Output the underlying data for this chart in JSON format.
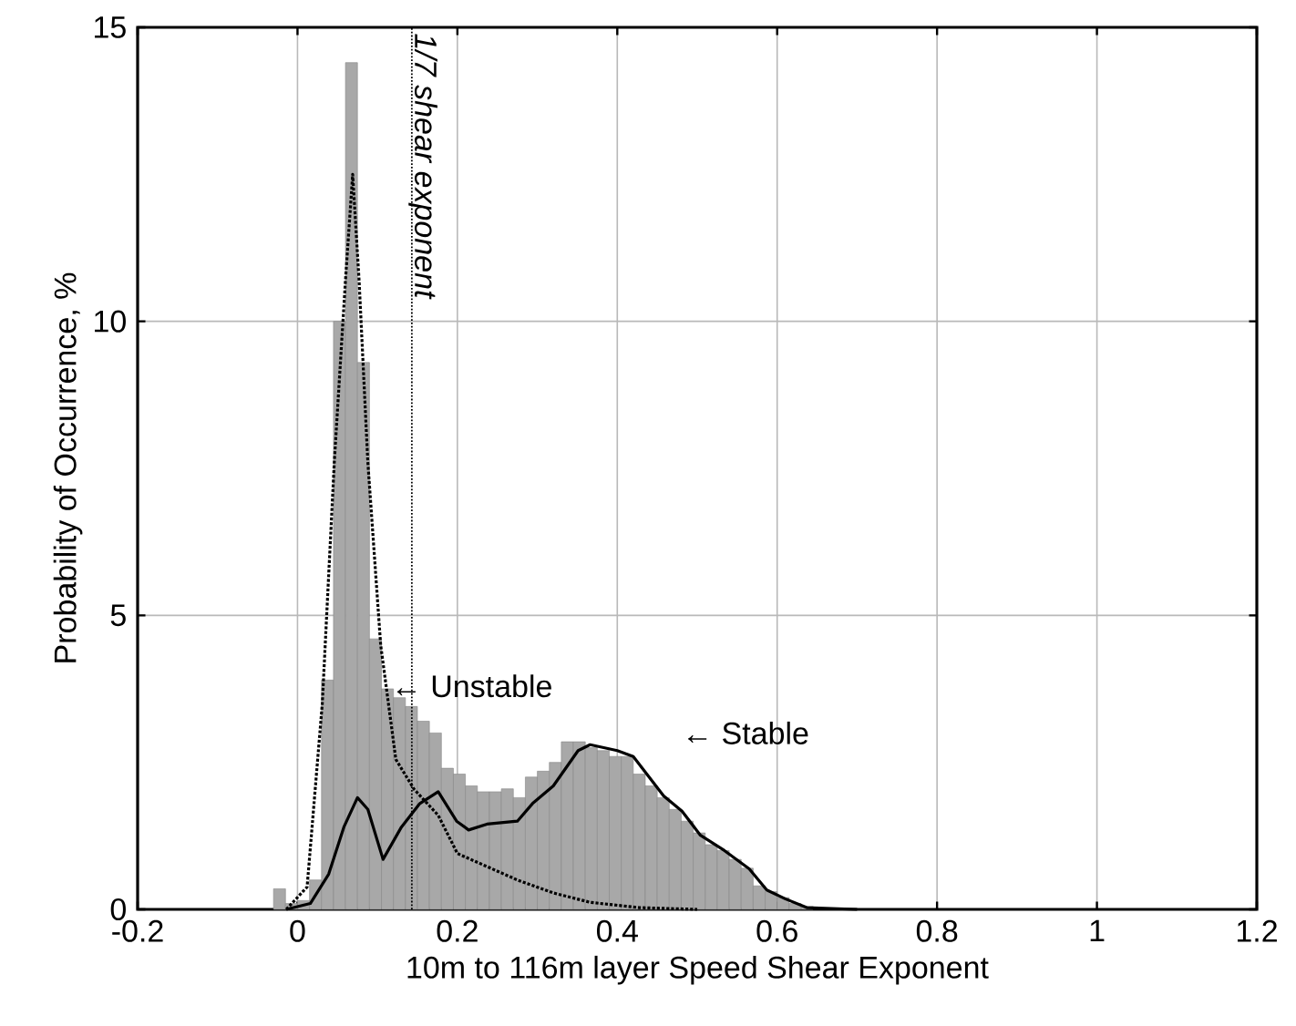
{
  "chart_data": {
    "type": "histogram",
    "xlabel": "10m to 116m layer Speed Shear Exponent",
    "ylabel": "Probability of Occurrence, %",
    "bins": [
      -0.03,
      -0.015,
      0,
      0.015,
      0.03,
      0.045,
      0.06,
      0.075,
      0.09,
      0.105,
      0.12,
      0.135,
      0.15,
      0.165,
      0.18,
      0.195,
      0.21,
      0.225,
      0.24,
      0.255,
      0.27,
      0.285,
      0.3,
      0.315,
      0.33,
      0.345,
      0.36,
      0.375,
      0.39,
      0.405,
      0.42,
      0.435,
      0.45,
      0.465,
      0.48,
      0.495,
      0.51,
      0.525,
      0.54,
      0.555,
      0.57,
      0.585,
      0.6,
      0.615,
      0.63,
      0.645
    ],
    "values": [
      0.35,
      0.1,
      0.15,
      0.5,
      3.9,
      10.0,
      14.4,
      9.3,
      4.6,
      3.75,
      3.6,
      3.45,
      3.2,
      3.0,
      2.4,
      2.3,
      2.1,
      2.0,
      2.0,
      2.05,
      1.9,
      2.25,
      2.35,
      2.5,
      2.85,
      2.85,
      2.75,
      2.7,
      2.6,
      2.6,
      2.3,
      2.1,
      1.9,
      1.7,
      1.5,
      1.3,
      1.1,
      1.0,
      0.85,
      0.7,
      0.4,
      0.3,
      0.2,
      0.1,
      0.05
    ],
    "color": "#a8a8a8",
    "series": [
      {
        "type": "line",
        "color": "#000000",
        "line_style": "dotted",
        "x": [
          -0.014,
          0.012,
          0.031,
          0.046,
          0.06,
          0.069,
          0.077,
          0.088,
          0.104,
          0.123,
          0.146,
          0.176,
          0.2,
          0.245,
          0.275,
          0.32,
          0.366,
          0.427,
          0.5
        ],
        "values": [
          0,
          0.38,
          3.5,
          7.6,
          10.7,
          12.5,
          10.7,
          7.6,
          4.5,
          2.55,
          2.04,
          1.6,
          0.95,
          0.68,
          0.5,
          0.28,
          0.12,
          0.03,
          0
        ]
      },
      {
        "type": "line",
        "color": "#000000",
        "line_style": "solid",
        "x": [
          -0.014,
          0.016,
          0.039,
          0.058,
          0.075,
          0.088,
          0.107,
          0.13,
          0.153,
          0.176,
          0.199,
          0.214,
          0.237,
          0.275,
          0.294,
          0.32,
          0.351,
          0.366,
          0.4,
          0.42,
          0.458,
          0.481,
          0.504,
          0.534,
          0.565,
          0.587,
          0.61,
          0.637,
          0.7
        ],
        "values": [
          0,
          0.1,
          0.6,
          1.4,
          1.9,
          1.7,
          0.85,
          1.4,
          1.8,
          2.0,
          1.5,
          1.35,
          1.45,
          1.5,
          1.8,
          2.1,
          2.7,
          2.8,
          2.7,
          2.6,
          1.93,
          1.67,
          1.26,
          1.0,
          0.69,
          0.33,
          0.18,
          0.03,
          0
        ]
      }
    ],
    "xlim": [
      -0.2,
      1.2
    ],
    "ylim": [
      0,
      15
    ],
    "xticks": [
      -0.2,
      0,
      0.2,
      0.4,
      0.6,
      0.8,
      1,
      1.2
    ],
    "yticks": [
      0,
      5,
      10,
      15
    ],
    "grid": true,
    "ref_lines": [
      {
        "axis": "x",
        "value": 0.143,
        "label": "1/7 shear exponent",
        "color": "#000000",
        "line_style": "dotted"
      }
    ],
    "annotations": [
      "← Unstable",
      "← Stable"
    ]
  }
}
